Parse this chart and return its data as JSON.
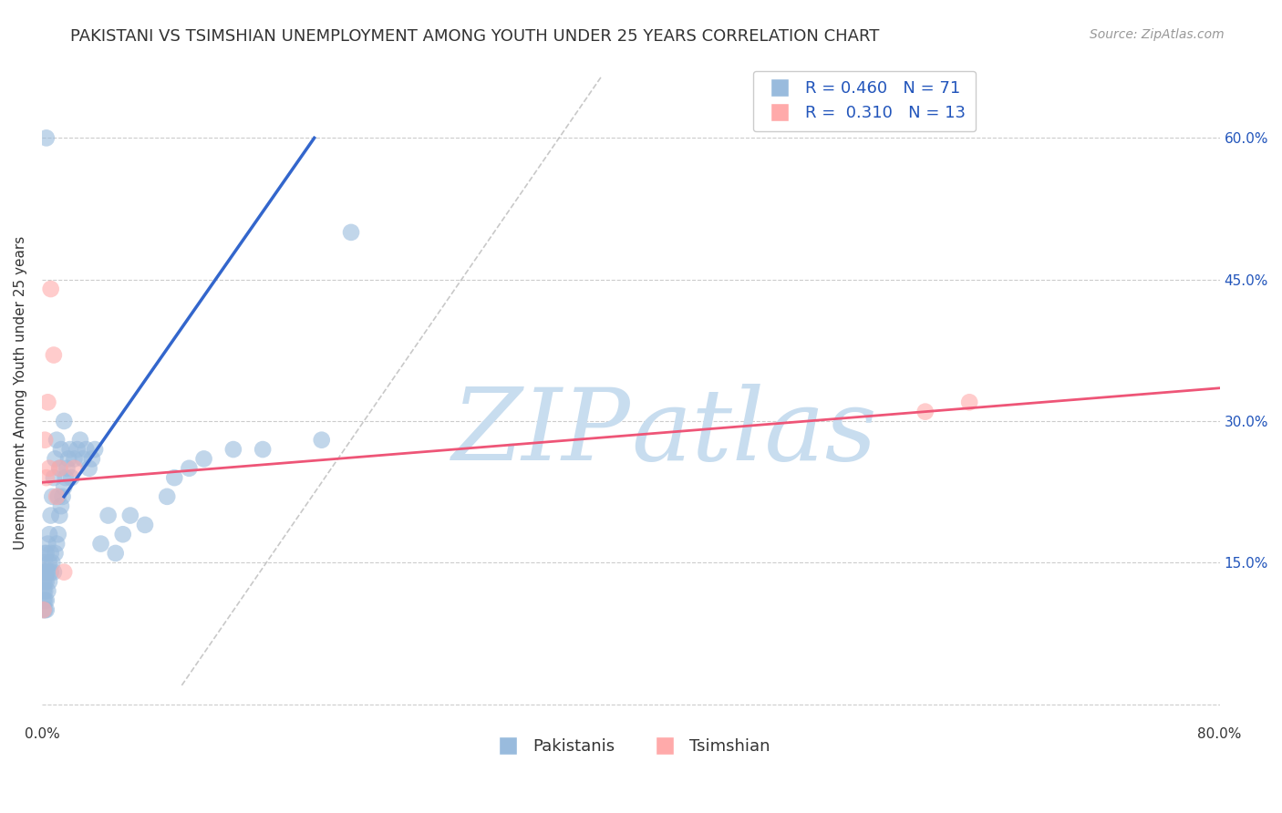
{
  "title": "PAKISTANI VS TSIMSHIAN UNEMPLOYMENT AMONG YOUTH UNDER 25 YEARS CORRELATION CHART",
  "source": "Source: ZipAtlas.com",
  "ylabel": "Unemployment Among Youth under 25 years",
  "xlim": [
    0.0,
    0.8
  ],
  "ylim": [
    -0.02,
    0.68
  ],
  "xtick_vals": [
    0.0,
    0.1,
    0.2,
    0.3,
    0.4,
    0.5,
    0.6,
    0.7,
    0.8
  ],
  "xticklabels": [
    "0.0%",
    "",
    "",
    "",
    "",
    "",
    "",
    "",
    "80.0%"
  ],
  "ytick_positions": [
    0.0,
    0.15,
    0.3,
    0.45,
    0.6
  ],
  "ytick_labels": [
    "",
    "15.0%",
    "30.0%",
    "45.0%",
    "60.0%"
  ],
  "pak_x": [
    0.001,
    0.001,
    0.001,
    0.001,
    0.001,
    0.002,
    0.002,
    0.002,
    0.002,
    0.002,
    0.002,
    0.002,
    0.003,
    0.003,
    0.003,
    0.003,
    0.003,
    0.004,
    0.004,
    0.004,
    0.005,
    0.005,
    0.005,
    0.006,
    0.006,
    0.006,
    0.007,
    0.007,
    0.008,
    0.008,
    0.009,
    0.009,
    0.01,
    0.01,
    0.011,
    0.011,
    0.012,
    0.012,
    0.013,
    0.013,
    0.014,
    0.015,
    0.015,
    0.016,
    0.017,
    0.018,
    0.019,
    0.02,
    0.022,
    0.024,
    0.026,
    0.028,
    0.03,
    0.032,
    0.034,
    0.036,
    0.04,
    0.045,
    0.05,
    0.055,
    0.06,
    0.07,
    0.085,
    0.09,
    0.1,
    0.11,
    0.13,
    0.15,
    0.19,
    0.21,
    0.003
  ],
  "pak_y": [
    0.1,
    0.11,
    0.12,
    0.13,
    0.14,
    0.1,
    0.11,
    0.12,
    0.13,
    0.14,
    0.15,
    0.16,
    0.1,
    0.11,
    0.13,
    0.14,
    0.16,
    0.12,
    0.14,
    0.17,
    0.13,
    0.15,
    0.18,
    0.14,
    0.16,
    0.2,
    0.15,
    0.22,
    0.14,
    0.24,
    0.16,
    0.26,
    0.17,
    0.28,
    0.18,
    0.22,
    0.2,
    0.25,
    0.21,
    0.27,
    0.22,
    0.23,
    0.3,
    0.24,
    0.25,
    0.26,
    0.27,
    0.24,
    0.26,
    0.27,
    0.28,
    0.26,
    0.27,
    0.25,
    0.26,
    0.27,
    0.17,
    0.2,
    0.16,
    0.18,
    0.2,
    0.19,
    0.22,
    0.24,
    0.25,
    0.26,
    0.27,
    0.27,
    0.28,
    0.5,
    0.6
  ],
  "tsim_x": [
    0.001,
    0.002,
    0.003,
    0.004,
    0.005,
    0.006,
    0.008,
    0.01,
    0.012,
    0.015,
    0.022,
    0.6,
    0.63
  ],
  "tsim_y": [
    0.1,
    0.28,
    0.24,
    0.32,
    0.25,
    0.44,
    0.37,
    0.22,
    0.25,
    0.14,
    0.25,
    0.31,
    0.32
  ],
  "blue_line_x": [
    0.015,
    0.185
  ],
  "blue_line_y": [
    0.22,
    0.6
  ],
  "pink_line_x": [
    0.0,
    0.8
  ],
  "pink_line_y": [
    0.235,
    0.335
  ],
  "ref_line_x": [
    0.095,
    0.38
  ],
  "ref_line_y": [
    0.02,
    0.665
  ],
  "blue_dot_color": "#99BBDD",
  "pink_dot_color": "#FFAAAA",
  "blue_line_color": "#3366CC",
  "pink_line_color": "#EE5577",
  "ref_line_color": "#BBBBBB",
  "watermark_zip_color": "#C8DDEF",
  "watermark_atlas_color": "#C8DDEF",
  "legend_R_color": "#2255BB",
  "legend_N_color": "#2255BB",
  "background_color": "#FFFFFF",
  "title_fontsize": 13,
  "source_fontsize": 10,
  "axis_label_fontsize": 11,
  "tick_fontsize": 11,
  "legend_fontsize": 13,
  "R_pakistani": "0.460",
  "N_pakistani": "71",
  "R_tsimshian": "0.310",
  "N_tsimshian": "13",
  "legend_label_pakistani": "Pakistanis",
  "legend_label_tsimshian": "Tsimshian"
}
